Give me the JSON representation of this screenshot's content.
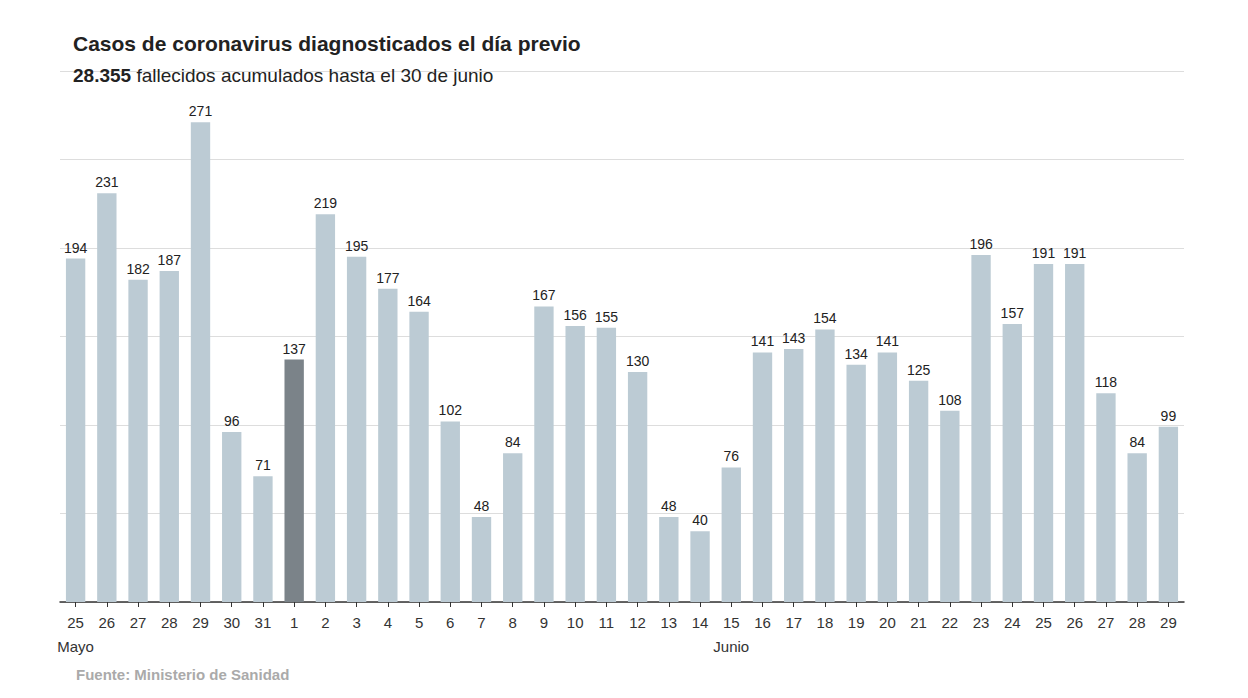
{
  "chart_data": {
    "type": "bar",
    "title": "Casos de coronavirus diagnosticados el día previo",
    "subtitle": "28.355 fallecidos acumulados hasta el 30 de junio",
    "source": "Fuente: Ministerio de Sanidad",
    "categories": [
      "25\nMayo",
      "26",
      "27",
      "28",
      "29",
      "30",
      "31",
      "1",
      "2",
      "3",
      "4",
      "5",
      "6",
      "7",
      "8",
      "9",
      "10",
      "11",
      "12",
      "13",
      "14",
      "15\nJunio",
      "16",
      "17",
      "18",
      "19",
      "20",
      "21",
      "22",
      "23",
      "24",
      "25",
      "26",
      "27",
      "28",
      "29"
    ],
    "values": [
      194,
      231,
      182,
      187,
      271,
      96,
      71,
      137,
      219,
      195,
      177,
      164,
      102,
      48,
      84,
      167,
      156,
      155,
      130,
      48,
      40,
      76,
      141,
      143,
      154,
      134,
      141,
      125,
      108,
      196,
      157,
      191,
      191,
      118,
      84,
      99
    ],
    "colors": [
      "#bccbd4",
      "#bccbd4",
      "#bccbd4",
      "#bccbd4",
      "#bccbd4",
      "#bccbd4",
      "#bccbd4",
      "#7b8389",
      "#bccbd4",
      "#bccbd4",
      "#bccbd4",
      "#bccbd4",
      "#bccbd4",
      "#bccbd4",
      "#bccbd4",
      "#bccbd4",
      "#bccbd4",
      "#bccbd4",
      "#bccbd4",
      "#bccbd4",
      "#bccbd4",
      "#bccbd4",
      "#bccbd4",
      "#bccbd4",
      "#bccbd4",
      "#bccbd4",
      "#bccbd4",
      "#bccbd4",
      "#bccbd4",
      "#bccbd4",
      "#bccbd4",
      "#bccbd4",
      "#bccbd4",
      "#bccbd4",
      "#bccbd4",
      "#bccbd4"
    ],
    "ylim": [
      0,
      300
    ],
    "yticks": [
      0,
      50,
      100,
      150,
      200,
      250,
      300
    ],
    "grid": true,
    "data_labels": true,
    "tick_labels": "x"
  }
}
